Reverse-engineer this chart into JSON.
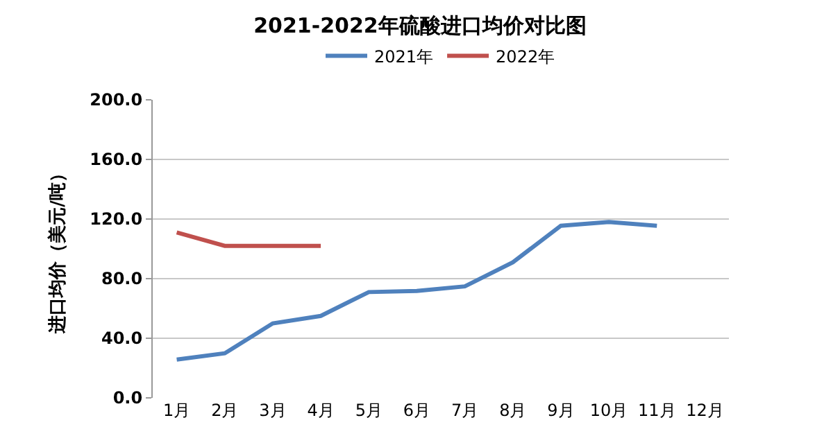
{
  "chart_data": {
    "type": "line",
    "title": "2021-2022年硫酸进口均价对比图",
    "ylabel": "进口均价（美元/吨）",
    "categories": [
      "1月",
      "2月",
      "3月",
      "4月",
      "5月",
      "6月",
      "7月",
      "8月",
      "9月",
      "10月",
      "11月",
      "12月"
    ],
    "series": [
      {
        "name": "2021年",
        "color": "#4f81bd",
        "values": [
          25.7,
          29.9,
          50.0,
          55.0,
          71.0,
          71.7,
          74.8,
          91.0,
          115.5,
          118.0,
          115.5,
          null
        ]
      },
      {
        "name": "2022年",
        "color": "#c0504d",
        "values": [
          111.0,
          102.0,
          102.0,
          102.0,
          null,
          null,
          null,
          null,
          null,
          null,
          null,
          null
        ]
      }
    ],
    "ylim": [
      0,
      200
    ],
    "yticks": [
      {
        "value": 0,
        "label": "0.0"
      },
      {
        "value": 40,
        "label": "40.0"
      },
      {
        "value": 80,
        "label": "80.0"
      },
      {
        "value": 120,
        "label": "120.0"
      },
      {
        "value": 160,
        "label": "160.0"
      },
      {
        "value": 200,
        "label": "200.0"
      }
    ],
    "grid": "y",
    "legend": "top",
    "marker": "none",
    "line_style": "solid"
  }
}
